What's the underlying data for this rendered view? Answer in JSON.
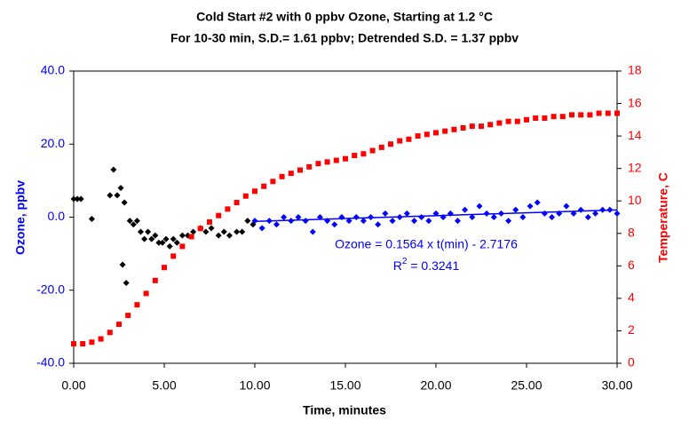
{
  "chart_data": {
    "type": "scatter",
    "title": "Cold Start #2 with 0 ppbv Ozone, Starting at 1.2 °C",
    "subtitle": "For 10-30 min, S.D.= 1.61 ppbv; Detrended  S.D. = 1.37 ppbv",
    "x_label": "Time, minutes",
    "y_label": "Ozone, ppbv",
    "y2_label": "Temperature, C",
    "xlim": [
      0,
      30
    ],
    "xticks": [
      {
        "value": 0,
        "label": "0.00"
      },
      {
        "value": 5,
        "label": "5.00"
      },
      {
        "value": 10,
        "label": "10.00"
      },
      {
        "value": 15,
        "label": "15.00"
      },
      {
        "value": 20,
        "label": "20.00"
      },
      {
        "value": 25,
        "label": "25.00"
      },
      {
        "value": 30,
        "label": "30.00"
      }
    ],
    "ylim": [
      -40,
      40
    ],
    "yticks": [
      {
        "value": -40,
        "label": "-40.0"
      },
      {
        "value": -20,
        "label": "-20.0"
      },
      {
        "value": 0,
        "label": "0.0"
      },
      {
        "value": 20,
        "label": "20.0"
      },
      {
        "value": 40,
        "label": "40.0"
      }
    ],
    "y2lim": [
      0,
      18
    ],
    "y2ticks": [
      0,
      2,
      4,
      6,
      8,
      10,
      12,
      14,
      16,
      18
    ],
    "annotations": {
      "equation": "Ozone = 0.1564 x t(min) - 2.7176",
      "r2_base": "R",
      "r2_sup": "2",
      "r2_rest": " = 0.3241"
    },
    "series": [
      {
        "kind": "scatter",
        "marker": "diamond",
        "color": "#000000",
        "x": [
          0,
          0.2,
          0.4,
          1,
          2,
          2.2,
          2.4,
          2.6,
          2.7,
          2.8,
          2.9,
          3.1,
          3.3,
          3.5,
          3.7,
          3.9,
          4.1,
          4.3,
          4.5,
          4.7,
          4.9,
          5.1,
          5.3,
          5.5,
          5.7,
          6,
          6.3,
          6.6,
          7,
          7.3,
          7.6,
          8,
          8.3,
          8.6,
          9,
          9.3,
          9.6,
          9.9
        ],
        "values": [
          5,
          5,
          5,
          -0.5,
          6,
          13,
          6,
          8,
          -13,
          4,
          -18,
          -1,
          -2,
          -1,
          -4,
          -6,
          -4,
          -6,
          -5,
          -7,
          -7,
          -6,
          -8,
          -6,
          -7,
          -5,
          -5,
          -4,
          -3,
          -4,
          -3,
          -5,
          -4,
          -5,
          -4,
          -4,
          -1,
          -2
        ]
      },
      {
        "kind": "scatter",
        "marker": "diamond",
        "color": "#0000ff",
        "x": [
          10,
          10.4,
          10.8,
          11.2,
          11.6,
          12,
          12.4,
          12.8,
          13.2,
          13.6,
          14,
          14.4,
          14.8,
          15.2,
          15.6,
          16,
          16.4,
          16.8,
          17.2,
          17.6,
          18,
          18.4,
          18.8,
          19.2,
          19.6,
          20,
          20.4,
          20.8,
          21.2,
          21.6,
          22,
          22.4,
          22.8,
          23.2,
          23.6,
          24,
          24.4,
          24.8,
          25.2,
          25.6,
          26,
          26.4,
          26.8,
          27.2,
          27.6,
          28,
          28.4,
          28.8,
          29.2,
          29.6,
          30
        ],
        "values": [
          -1,
          -3,
          -1,
          -2,
          0,
          -1,
          0,
          -1,
          -4,
          0,
          -1,
          -2,
          0,
          -1,
          0,
          -1,
          0,
          -2,
          1,
          -1,
          0,
          1,
          -1,
          0,
          -1,
          1,
          0,
          1,
          -1,
          2,
          0,
          3,
          1,
          0,
          1,
          -1,
          2,
          0,
          3,
          4,
          1,
          0,
          1,
          3,
          1,
          2,
          0,
          1,
          2,
          2,
          1
        ]
      },
      {
        "kind": "line",
        "color": "#0000ff",
        "x": [
          10,
          30
        ],
        "values": [
          -1.1536,
          1.9744
        ]
      },
      {
        "kind": "scatter",
        "marker": "square",
        "color": "#ff0000",
        "axis": "y2",
        "x": [
          0,
          0.5,
          1,
          1.5,
          2,
          2.5,
          3,
          3.5,
          4,
          4.5,
          5,
          5.5,
          6,
          6.5,
          7,
          7.5,
          8,
          8.5,
          9,
          9.5,
          10,
          10.5,
          11,
          11.5,
          12,
          12.5,
          13,
          13.5,
          14,
          14.5,
          15,
          15.5,
          16,
          16.5,
          17,
          17.5,
          18,
          18.5,
          19,
          19.5,
          20,
          20.5,
          21,
          21.5,
          22,
          22.5,
          23,
          23.5,
          24,
          24.5,
          25,
          25.5,
          26,
          26.5,
          27,
          27.5,
          28,
          28.5,
          29,
          29.5,
          30
        ],
        "values": [
          1.2,
          1.2,
          1.3,
          1.5,
          1.9,
          2.4,
          2.95,
          3.6,
          4.3,
          5.1,
          5.9,
          6.6,
          7.2,
          7.8,
          8.3,
          8.7,
          9.1,
          9.5,
          9.9,
          10.3,
          10.6,
          10.9,
          11.2,
          11.5,
          11.7,
          11.9,
          12.1,
          12.3,
          12.4,
          12.5,
          12.6,
          12.8,
          12.9,
          13.1,
          13.3,
          13.5,
          13.7,
          13.8,
          14.0,
          14.1,
          14.2,
          14.3,
          14.4,
          14.5,
          14.6,
          14.6,
          14.7,
          14.8,
          14.9,
          14.9,
          15.0,
          15.1,
          15.1,
          15.2,
          15.2,
          15.3,
          15.3,
          15.3,
          15.4,
          15.4,
          15.4
        ]
      }
    ]
  }
}
